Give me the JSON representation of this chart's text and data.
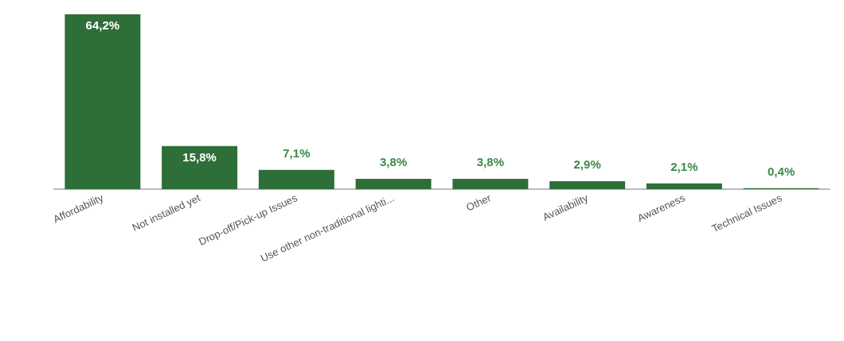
{
  "chart_data": {
    "type": "bar",
    "categories": [
      "Affordability",
      "Not installed yet",
      "Drop-off/Pick-up Issues",
      "Use other non-traditional lighti...",
      "Other",
      "Availability",
      "Awareness",
      "Technical Issues"
    ],
    "values": [
      64.2,
      15.8,
      7.1,
      3.8,
      3.8,
      2.9,
      2.1,
      0.4
    ],
    "value_labels": [
      "64,2%",
      "15,8%",
      "7,1%",
      "3,8%",
      "3,8%",
      "2,9%",
      "2,1%",
      "0,4%"
    ],
    "color": "#2e6e38"
  }
}
